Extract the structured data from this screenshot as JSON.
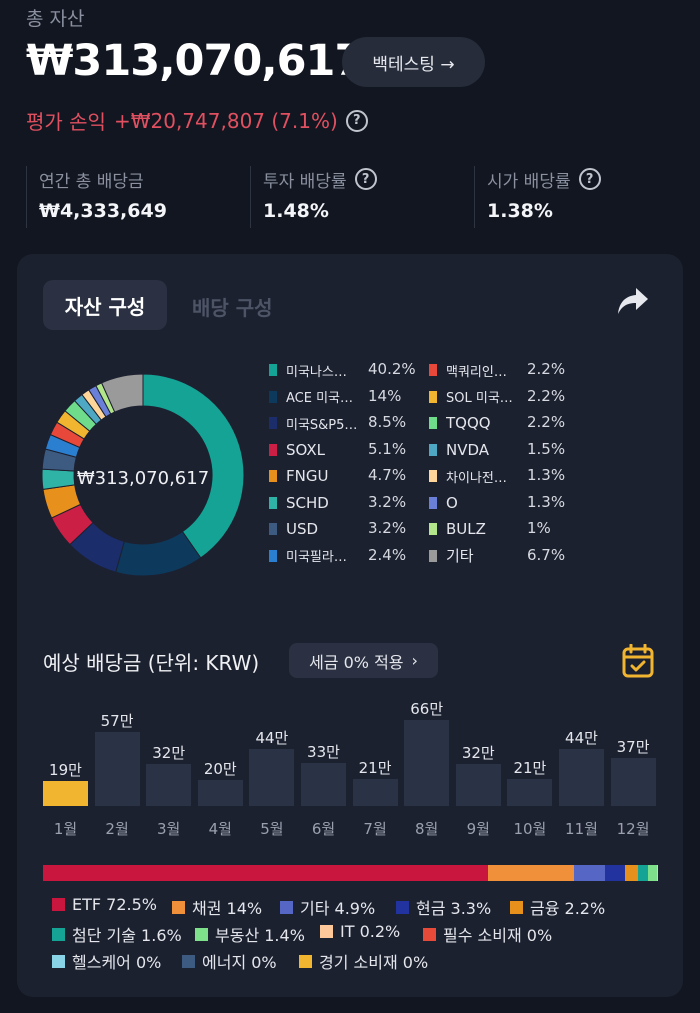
{
  "summary": {
    "total_label": "총 자산",
    "total_value": "₩313,070,617",
    "backtest_label": "백테스팅 →",
    "pl_label": "평가 손익",
    "pl_value": "+₩20,747,807 (7.1%)"
  },
  "stats": [
    {
      "label": "연간 총 배당금",
      "value": "₩4,333,649",
      "help": false
    },
    {
      "label": "투자 배당률",
      "value": "1.48%",
      "help": true
    },
    {
      "label": "시가 배당률",
      "value": "1.38%",
      "help": true
    }
  ],
  "tabs": {
    "asset": "자산 구성",
    "dividend": "배당 구성"
  },
  "icons": {
    "share": "share-arrow-icon",
    "calendar": "calendar-check-icon",
    "help": "question-circle-icon"
  },
  "help_glyph": "?",
  "donut_center": "₩313,070,617",
  "allocation": [
    {
      "name": "미국나스…",
      "pct": "40.2%",
      "value": 40.2,
      "color": "#14a394",
      "small": true
    },
    {
      "name": "ACE 미국…",
      "pct": "14%",
      "value": 14,
      "color": "#0d3a5c",
      "small": true
    },
    {
      "name": "미국S&P5…",
      "pct": "8.5%",
      "value": 8.5,
      "color": "#1b2d6b",
      "small": true
    },
    {
      "name": "SOXL",
      "pct": "5.1%",
      "value": 5.1,
      "color": "#cc1f45",
      "small": false
    },
    {
      "name": "FNGU",
      "pct": "4.7%",
      "value": 4.7,
      "color": "#e8901c",
      "small": false
    },
    {
      "name": "SCHD",
      "pct": "3.2%",
      "value": 3.2,
      "color": "#2fb3a6",
      "small": false
    },
    {
      "name": "USD",
      "pct": "3.2%",
      "value": 3.2,
      "color": "#3d5a80",
      "small": false
    },
    {
      "name": "미국필라…",
      "pct": "2.4%",
      "value": 2.4,
      "color": "#2b7fd0",
      "small": true
    },
    {
      "name": "맥쿼리인…",
      "pct": "2.2%",
      "value": 2.2,
      "color": "#e8483a",
      "small": true
    },
    {
      "name": "SOL 미국…",
      "pct": "2.2%",
      "value": 2.2,
      "color": "#f2b530",
      "small": true
    },
    {
      "name": "TQQQ",
      "pct": "2.2%",
      "value": 2.2,
      "color": "#6fdc8c",
      "small": false
    },
    {
      "name": "NVDA",
      "pct": "1.5%",
      "value": 1.5,
      "color": "#4ea8c4",
      "small": false
    },
    {
      "name": "차이나전…",
      "pct": "1.3%",
      "value": 1.3,
      "color": "#ffd59a",
      "small": true
    },
    {
      "name": "O",
      "pct": "1.3%",
      "value": 1.3,
      "color": "#6a80d8",
      "small": false
    },
    {
      "name": "BULZ",
      "pct": "1%",
      "value": 1,
      "color": "#b3e68a",
      "small": false
    },
    {
      "name": "기타",
      "pct": "6.7%",
      "value": 6.7,
      "color": "#9a9a9a",
      "small": false
    }
  ],
  "dividend": {
    "title": "예상 배당금 (단위: KRW)",
    "tax_label": "세금 0% 적용",
    "tax_chevron": "›"
  },
  "chart_data": {
    "type": "bar",
    "categories": [
      "1월",
      "2월",
      "3월",
      "4월",
      "5월",
      "6월",
      "7월",
      "8월",
      "9월",
      "10월",
      "11월",
      "12월"
    ],
    "values": [
      19,
      57,
      32,
      20,
      44,
      33,
      21,
      66,
      32,
      21,
      44,
      37
    ],
    "labels": [
      "19만",
      "57만",
      "32만",
      "20만",
      "44만",
      "33만",
      "21만",
      "66만",
      "32만",
      "21만",
      "44만",
      "37만"
    ],
    "highlight_index": 0,
    "highlight_color": "#f2b530",
    "bar_color": "#2a3246",
    "ylim": [
      0,
      66
    ]
  },
  "sectors": [
    {
      "name": "ETF",
      "pct": "72.5%",
      "value": 72.5,
      "color": "#c8163f"
    },
    {
      "name": "채권",
      "pct": "14%",
      "value": 14,
      "color": "#f0903a"
    },
    {
      "name": "기타",
      "pct": "4.9%",
      "value": 4.9,
      "color": "#5566c4"
    },
    {
      "name": "현금",
      "pct": "3.3%",
      "value": 3.3,
      "color": "#2233a0"
    },
    {
      "name": "금융",
      "pct": "2.2%",
      "value": 2.2,
      "color": "#e8901c"
    },
    {
      "name": "첨단 기술",
      "pct": "1.6%",
      "value": 1.6,
      "color": "#14a394"
    },
    {
      "name": "부동산",
      "pct": "1.4%",
      "value": 1.4,
      "color": "#7ee08a"
    },
    {
      "name": "IT",
      "pct": "0.2%",
      "value": 0.2,
      "color": "#ffc89a"
    },
    {
      "name": "필수 소비재",
      "pct": "0%",
      "value": 0,
      "color": "#e84a3a"
    },
    {
      "name": "헬스케어",
      "pct": "0%",
      "value": 0,
      "color": "#8ad4e8"
    },
    {
      "name": "에너지",
      "pct": "0%",
      "value": 0,
      "color": "#3d5a80"
    },
    {
      "name": "경기 소비재",
      "pct": "0%",
      "value": 0,
      "color": "#f2b530"
    }
  ]
}
